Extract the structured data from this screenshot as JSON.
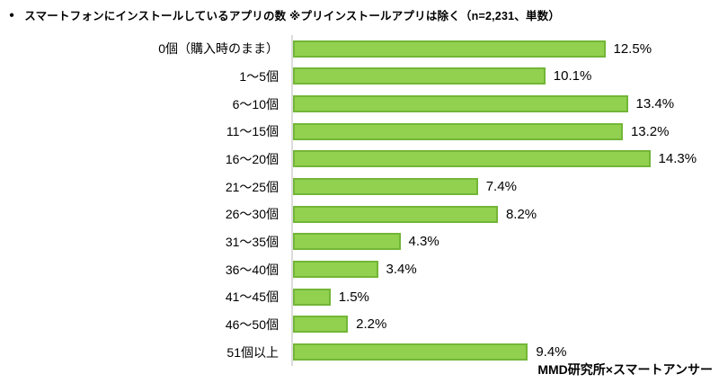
{
  "title": {
    "bullet": "●",
    "text": "スマートフォンにインストールしているアプリの数 ※プリインストールアプリは除く（n=2,231、単数）"
  },
  "footer": {
    "credit": "MMD研究所×スマートアンサー"
  },
  "colors": {
    "bar_fill": "#92D050",
    "bar_border": "#73B637",
    "axis_line": "#DCDCDC",
    "text": "#000000",
    "bg": "#FFFFFF"
  },
  "chart_data": {
    "type": "bar",
    "orientation": "horizontal",
    "title": "スマートフォンにインストールしているアプリの数 ※プリインストールアプリは除く（n=2,231、単数）",
    "categories": [
      "0個（購入時のまま）",
      "1～5個",
      "6～10個",
      "11～15個",
      "16～20個",
      "21～25個",
      "26～30個",
      "31～35個",
      "36～40個",
      "41～45個",
      "46～50個",
      "51個以上"
    ],
    "values": [
      12.5,
      10.1,
      13.4,
      13.2,
      14.3,
      7.4,
      8.2,
      4.3,
      3.4,
      1.5,
      2.2,
      9.4
    ],
    "value_suffix": "%",
    "xlim": [
      0,
      14.5
    ],
    "grid": false,
    "legend": false,
    "data_labels": true,
    "source": "MMD研究所×スマートアンサー"
  }
}
